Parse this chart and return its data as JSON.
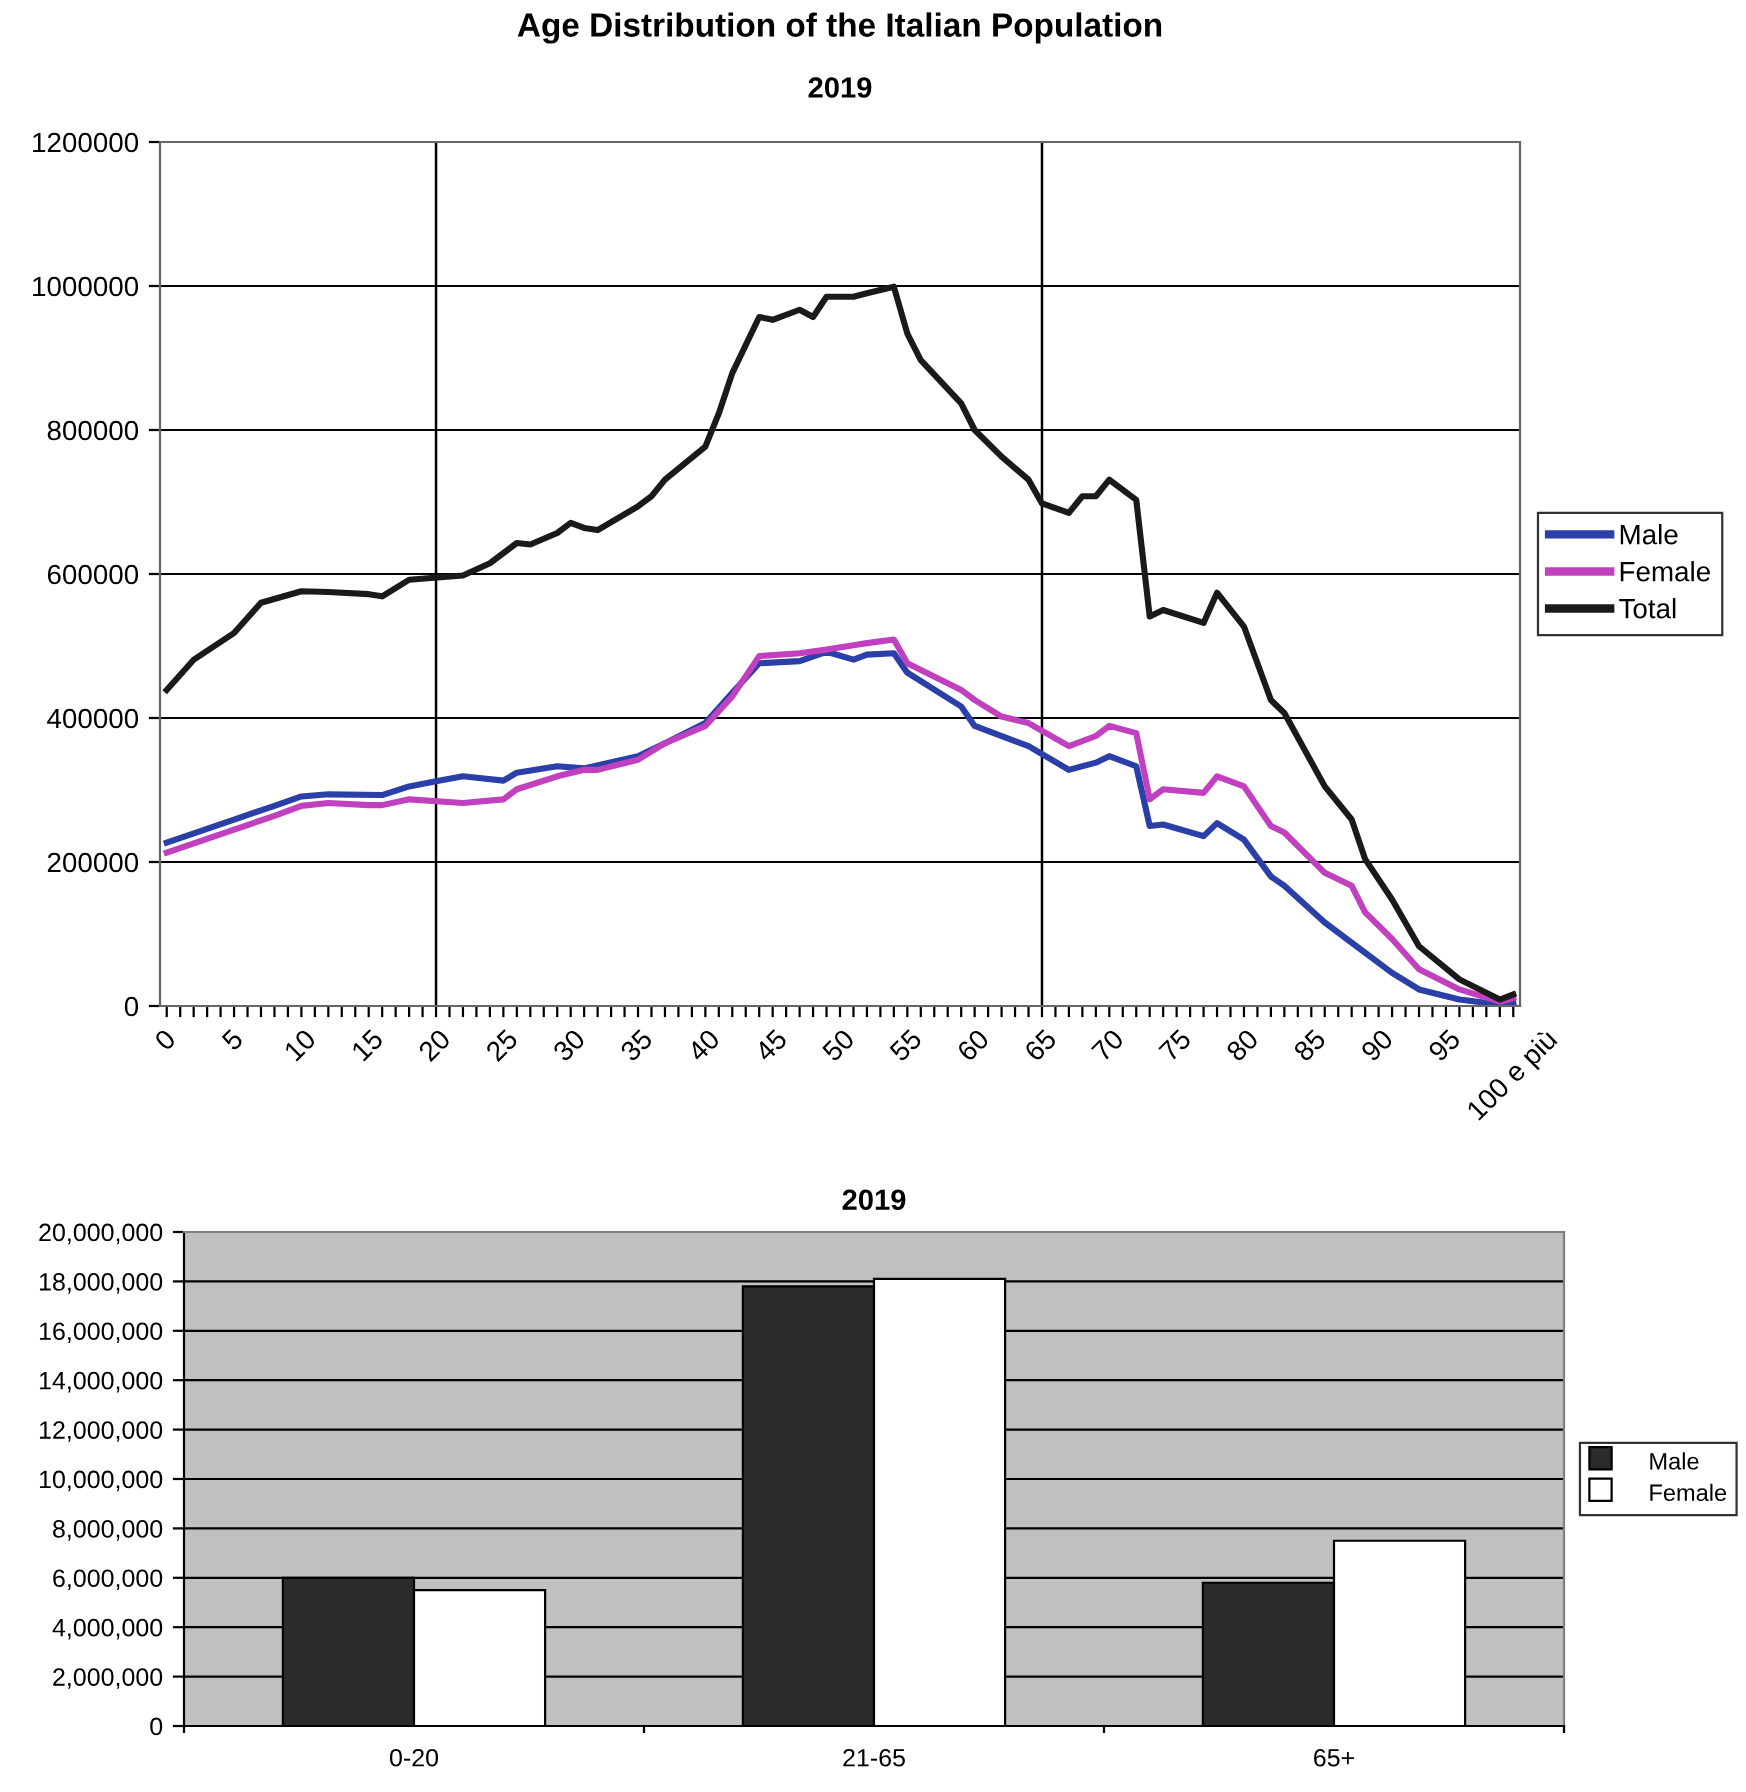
{
  "chart_data": [
    {
      "type": "line",
      "title": "Age Distribution of the Italian Population",
      "subtitle": "2019",
      "xlim": [
        -0.5,
        100.5
      ],
      "ylim": [
        0,
        1200000
      ],
      "yticks": [
        0,
        200000,
        400000,
        600000,
        800000,
        1000000,
        1200000
      ],
      "xticks": [
        0,
        {
          "value": 1,
          "label": null
        },
        {
          "value": 2,
          "label": null
        },
        {
          "value": 3,
          "label": null
        },
        {
          "value": 4,
          "label": null
        },
        5,
        {
          "value": 6,
          "label": null
        },
        {
          "value": 7,
          "label": null
        },
        {
          "value": 8,
          "label": null
        },
        {
          "value": 9,
          "label": null
        },
        10,
        {
          "value": 11,
          "label": null
        },
        {
          "value": 12,
          "label": null
        },
        {
          "value": 13,
          "label": null
        },
        {
          "value": 14,
          "label": null
        },
        15,
        {
          "value": 16,
          "label": null
        },
        {
          "value": 17,
          "label": null
        },
        {
          "value": 18,
          "label": null
        },
        {
          "value": 19,
          "label": null
        },
        20,
        {
          "value": 21,
          "label": null
        },
        {
          "value": 22,
          "label": null
        },
        {
          "value": 23,
          "label": null
        },
        {
          "value": 24,
          "label": null
        },
        25,
        {
          "value": 26,
          "label": null
        },
        {
          "value": 27,
          "label": null
        },
        {
          "value": 28,
          "label": null
        },
        {
          "value": 29,
          "label": null
        },
        30,
        {
          "value": 31,
          "label": null
        },
        {
          "value": 32,
          "label": null
        },
        {
          "value": 33,
          "label": null
        },
        {
          "value": 34,
          "label": null
        },
        35,
        {
          "value": 36,
          "label": null
        },
        {
          "value": 37,
          "label": null
        },
        {
          "value": 38,
          "label": null
        },
        {
          "value": 39,
          "label": null
        },
        40,
        {
          "value": 41,
          "label": null
        },
        {
          "value": 42,
          "label": null
        },
        {
          "value": 43,
          "label": null
        },
        {
          "value": 44,
          "label": null
        },
        45,
        {
          "value": 46,
          "label": null
        },
        {
          "value": 47,
          "label": null
        },
        {
          "value": 48,
          "label": null
        },
        {
          "value": 49,
          "label": null
        },
        50,
        {
          "value": 51,
          "label": null
        },
        {
          "value": 52,
          "label": null
        },
        {
          "value": 53,
          "label": null
        },
        {
          "value": 54,
          "label": null
        },
        55,
        {
          "value": 56,
          "label": null
        },
        {
          "value": 57,
          "label": null
        },
        {
          "value": 58,
          "label": null
        },
        {
          "value": 59,
          "label": null
        },
        60,
        {
          "value": 61,
          "label": null
        },
        {
          "value": 62,
          "label": null
        },
        {
          "value": 63,
          "label": null
        },
        {
          "value": 64,
          "label": null
        },
        65,
        {
          "value": 66,
          "label": null
        },
        {
          "value": 67,
          "label": null
        },
        {
          "value": 68,
          "label": null
        },
        {
          "value": 69,
          "label": null
        },
        70,
        {
          "value": 71,
          "label": null
        },
        {
          "value": 72,
          "label": null
        },
        {
          "value": 73,
          "label": null
        },
        {
          "value": 74,
          "label": null
        },
        75,
        {
          "value": 76,
          "label": null
        },
        {
          "value": 77,
          "label": null
        },
        {
          "value": 78,
          "label": null
        },
        {
          "value": 79,
          "label": null
        },
        80,
        {
          "value": 81,
          "label": null
        },
        {
          "value": 82,
          "label": null
        },
        {
          "value": 83,
          "label": null
        },
        {
          "value": 84,
          "label": null
        },
        85,
        {
          "value": 86,
          "label": null
        },
        {
          "value": 87,
          "label": null
        },
        {
          "value": 88,
          "label": null
        },
        {
          "value": 89,
          "label": null
        },
        90,
        {
          "value": 91,
          "label": null
        },
        {
          "value": 92,
          "label": null
        },
        {
          "value": 93,
          "label": null
        },
        {
          "value": 94,
          "label": null
        },
        95,
        {
          "value": 96,
          "label": null
        },
        {
          "value": 97,
          "label": null
        },
        {
          "value": 98,
          "label": null
        },
        {
          "value": 99,
          "label": null
        },
        {
          "value": 100,
          "label": "100 e più"
        }
      ],
      "grid": "y",
      "legend": "right",
      "marker": "none",
      "line_style": "solid",
      "ref_lines": [
        {
          "axis": "x",
          "value": 20,
          "color": "#000000"
        },
        {
          "axis": "x",
          "value": 65,
          "color": "#000000"
        }
      ],
      "series": [
        {
          "name": "Male",
          "color": "#2a3fa8",
          "x": [
            0,
            5,
            8,
            10,
            12,
            16,
            18,
            20,
            22,
            25,
            26,
            29,
            31,
            35,
            37,
            40,
            42,
            44,
            47,
            49,
            51,
            52,
            54,
            55,
            59,
            60,
            64,
            67,
            69,
            70,
            72,
            73,
            74,
            77,
            78,
            80,
            82,
            83,
            86,
            89,
            91,
            93,
            96,
            99,
            100
          ],
          "values": [
            227000,
            259000,
            278000,
            291000,
            294000,
            293000,
            305000,
            312000,
            319000,
            313000,
            324000,
            333000,
            330000,
            347000,
            365000,
            393000,
            435000,
            476000,
            479000,
            492000,
            481000,
            488000,
            490000,
            463000,
            416000,
            389000,
            361000,
            328000,
            338000,
            347000,
            333000,
            250000,
            252000,
            236000,
            254000,
            231000,
            180000,
            167000,
            116000,
            74000,
            46000,
            23000,
            9000,
            2000,
            5000
          ]
        },
        {
          "name": "Female",
          "color": "#c040c0",
          "x": [
            0,
            5,
            8,
            10,
            12,
            15,
            16,
            18,
            22,
            25,
            26,
            29,
            31,
            32,
            35,
            37,
            40,
            42,
            44,
            47,
            49,
            51,
            52,
            54,
            55,
            59,
            60,
            62,
            64,
            67,
            69,
            70,
            72,
            73,
            74,
            77,
            78,
            80,
            82,
            83,
            86,
            88,
            89,
            91,
            93,
            96,
            99,
            100
          ],
          "values": [
            213000,
            245000,
            264000,
            278000,
            282000,
            279000,
            279000,
            287000,
            282000,
            287000,
            301000,
            319000,
            328000,
            328000,
            342000,
            365000,
            389000,
            430000,
            486000,
            490000,
            495000,
            501000,
            504000,
            509000,
            476000,
            439000,
            425000,
            402000,
            393000,
            361000,
            375000,
            389000,
            379000,
            287000,
            301000,
            296000,
            319000,
            305000,
            250000,
            241000,
            185000,
            167000,
            130000,
            93000,
            51000,
            23000,
            6000,
            11000
          ]
        },
        {
          "name": "Total",
          "color": "#1a1a1a",
          "x": [
            0,
            2,
            5,
            7,
            10,
            12,
            15,
            16,
            18,
            22,
            24,
            26,
            27,
            29,
            30,
            31,
            32,
            35,
            36,
            37,
            40,
            41,
            42,
            44,
            45,
            47,
            48,
            49,
            51,
            52,
            54,
            55,
            56,
            59,
            60,
            62,
            64,
            65,
            67,
            68,
            69,
            70,
            72,
            73,
            74,
            77,
            78,
            80,
            82,
            83,
            86,
            88,
            89,
            91,
            93,
            96,
            99,
            100
          ],
          "values": [
            439000,
            481000,
            518000,
            560000,
            576000,
            575000,
            572000,
            569000,
            592000,
            598000,
            615000,
            643000,
            641000,
            657000,
            671000,
            664000,
            661000,
            694000,
            708000,
            731000,
            777000,
            823000,
            879000,
            957000,
            953000,
            967000,
            957000,
            985000,
            985000,
            990000,
            999000,
            934000,
            897000,
            837000,
            800000,
            763000,
            731000,
            698000,
            685000,
            708000,
            708000,
            731000,
            703000,
            541000,
            550000,
            532000,
            574000,
            527000,
            425000,
            407000,
            305000,
            259000,
            204000,
            148000,
            83000,
            37000,
            9000,
            16000
          ]
        }
      ]
    },
    {
      "type": "bar",
      "title": "2019",
      "categories": [
        "0-20",
        "21-65",
        "65+"
      ],
      "ylim": [
        0,
        20000000
      ],
      "yticks": [
        {
          "value": 0,
          "label": "0"
        },
        {
          "value": 2000000,
          "label": "2,000,000"
        },
        {
          "value": 4000000,
          "label": "4,000,000"
        },
        {
          "value": 6000000,
          "label": "6,000,000"
        },
        {
          "value": 8000000,
          "label": "8,000,000"
        },
        {
          "value": 10000000,
          "label": "10,000,000"
        },
        {
          "value": 12000000,
          "label": "12,000,000"
        },
        {
          "value": 14000000,
          "label": "14,000,000"
        },
        {
          "value": 16000000,
          "label": "16,000,000"
        },
        {
          "value": 18000000,
          "label": "18,000,000"
        },
        {
          "value": 20000000,
          "label": "20,000,000"
        }
      ],
      "grid": "y",
      "legend": "right",
      "series": [
        {
          "name": "Male",
          "color": "#2b2b2b",
          "values": [
            6000000,
            17800000,
            5800000
          ]
        },
        {
          "name": "Female",
          "color": "#ffffff",
          "values": [
            5500000,
            18100000,
            7500000
          ]
        }
      ]
    }
  ]
}
